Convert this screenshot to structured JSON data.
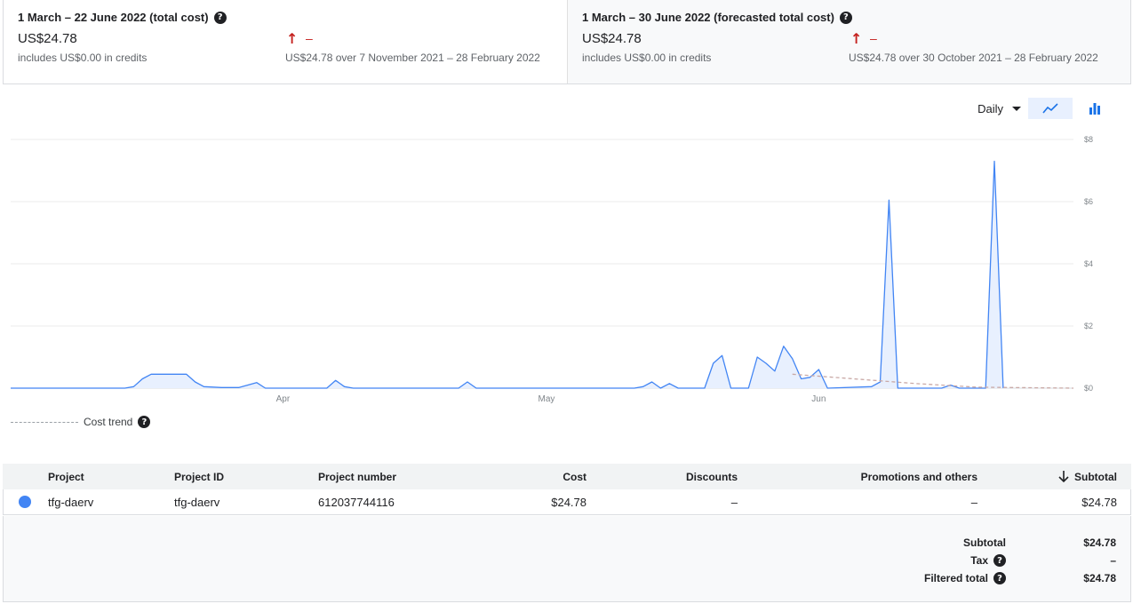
{
  "summary_cards": [
    {
      "title": "1 March – 22 June 2022 (total cost)",
      "amount": "US$24.78",
      "credits": "includes US$0.00 in credits",
      "trend_arrow": "↑",
      "trend_dash": "–",
      "trend_text": "US$24.78 over 7 November 2021 – 28 February 2022"
    },
    {
      "title": "1 March – 30 June 2022 (forecasted total cost)",
      "amount": "US$24.78",
      "credits": "includes US$0.00 in credits",
      "trend_arrow": "↑",
      "trend_dash": "–",
      "trend_text": "US$24.78 over 30 October 2021 – 28 February 2022"
    }
  ],
  "controls": {
    "granularity": "Daily",
    "active_view": "line",
    "views": [
      "line",
      "bar"
    ]
  },
  "colors": {
    "series": "#4285f4",
    "series_fill": "#e8f0fe",
    "trend": "#c5c5c5",
    "increase": "#c5221f"
  },
  "chart_data": {
    "type": "area",
    "x_start": "2022-03-01",
    "x_end": "2022-06-30",
    "x_tick_labels": [
      "Apr",
      "May",
      "Jun"
    ],
    "x_tick_dates": [
      "2022-04-01",
      "2022-05-01",
      "2022-06-01"
    ],
    "y_tick_labels": [
      "$8",
      "$6",
      "$4",
      "$2",
      "$0"
    ],
    "ylim": [
      0,
      8
    ],
    "grid": true,
    "series": [
      {
        "points": [
          [
            "2022-03-01",
            0
          ],
          [
            "2022-03-14",
            0
          ],
          [
            "2022-03-15",
            0.05
          ],
          [
            "2022-03-16",
            0.3
          ],
          [
            "2022-03-17",
            0.45
          ],
          [
            "2022-03-21",
            0.45
          ],
          [
            "2022-03-22",
            0.2
          ],
          [
            "2022-03-23",
            0.05
          ],
          [
            "2022-03-25",
            0.02
          ],
          [
            "2022-03-27",
            0.02
          ],
          [
            "2022-03-28",
            0.1
          ],
          [
            "2022-03-29",
            0.18
          ],
          [
            "2022-03-30",
            0
          ],
          [
            "2022-04-06",
            0
          ],
          [
            "2022-04-07",
            0.25
          ],
          [
            "2022-04-08",
            0.05
          ],
          [
            "2022-04-09",
            0
          ],
          [
            "2022-04-21",
            0
          ],
          [
            "2022-04-22",
            0.2
          ],
          [
            "2022-04-23",
            0
          ],
          [
            "2022-05-11",
            0
          ],
          [
            "2022-05-12",
            0.05
          ],
          [
            "2022-05-13",
            0.2
          ],
          [
            "2022-05-14",
            0
          ],
          [
            "2022-05-15",
            0.15
          ],
          [
            "2022-05-16",
            0
          ],
          [
            "2022-05-19",
            0
          ],
          [
            "2022-05-20",
            0.8
          ],
          [
            "2022-05-21",
            1.05
          ],
          [
            "2022-05-22",
            0
          ],
          [
            "2022-05-24",
            0
          ],
          [
            "2022-05-25",
            1.0
          ],
          [
            "2022-05-26",
            0.8
          ],
          [
            "2022-05-27",
            0.55
          ],
          [
            "2022-05-28",
            1.35
          ],
          [
            "2022-05-29",
            0.95
          ],
          [
            "2022-05-30",
            0.3
          ],
          [
            "2022-05-31",
            0.35
          ],
          [
            "2022-06-01",
            0.6
          ],
          [
            "2022-06-02",
            0
          ],
          [
            "2022-06-07",
            0.05
          ],
          [
            "2022-06-08",
            0.2
          ],
          [
            "2022-06-09",
            6.05
          ],
          [
            "2022-06-10",
            0
          ],
          [
            "2022-06-15",
            0
          ],
          [
            "2022-06-16",
            0.1
          ],
          [
            "2022-06-17",
            0
          ],
          [
            "2022-06-20",
            0
          ],
          [
            "2022-06-21",
            7.3
          ],
          [
            "2022-06-22",
            0
          ]
        ]
      },
      {
        "style": "dashed",
        "points": [
          [
            "2022-05-29",
            0.45
          ],
          [
            "2022-06-05",
            0.3
          ],
          [
            "2022-06-12",
            0.15
          ],
          [
            "2022-06-19",
            0.03
          ],
          [
            "2022-06-30",
            0
          ]
        ]
      }
    ]
  },
  "legend": {
    "cost_trend": "Cost trend"
  },
  "table": {
    "headers": [
      "Project",
      "Project ID",
      "Project number",
      "Cost",
      "Discounts",
      "Promotions and others",
      "Subtotal"
    ],
    "sort_icon": "arrow-down-icon",
    "rows": [
      [
        "tfg-daerv",
        "tfg-daerv",
        "612037744116",
        "$24.78",
        "–",
        "–",
        "$24.78"
      ]
    ]
  },
  "totals": {
    "subtotal_label": "Subtotal",
    "subtotal_value": "$24.78",
    "tax_label": "Tax",
    "tax_value": "–",
    "filtered_label": "Filtered total",
    "filtered_value": "$24.78"
  }
}
